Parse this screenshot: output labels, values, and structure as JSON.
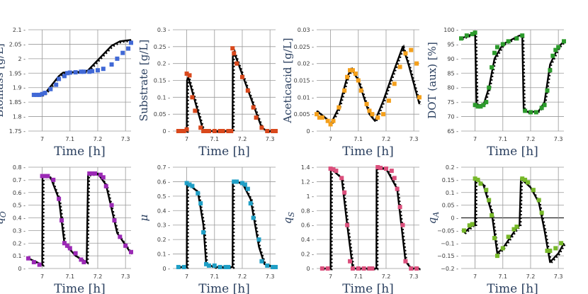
{
  "chart_data": [
    {
      "type": "scatter",
      "title": "",
      "ylabel": "Biomass [g/L]",
      "xlabel": "Time [h]",
      "color": "#4169d6",
      "ylim": [
        1.75,
        2.1
      ],
      "yticks": [
        {
          "v": 1.75,
          "t": "1.75"
        },
        {
          "v": 1.8,
          "t": "1.8"
        },
        {
          "v": 1.85,
          "t": "1.85"
        },
        {
          "v": 1.9,
          "t": "1.9"
        },
        {
          "v": 1.95,
          "t": "1.95"
        },
        {
          "v": 2,
          "t": "2"
        },
        {
          "v": 2.05,
          "t": "2.05"
        },
        {
          "v": 2.1,
          "t": "2.1"
        }
      ],
      "xticks": [
        {
          "v": 7,
          "t": "7"
        },
        {
          "v": 7.1,
          "t": "7.1"
        },
        {
          "v": 7.2,
          "t": "7.2"
        },
        {
          "v": 7.3,
          "t": "7.3"
        }
      ],
      "x": [
        6.97,
        6.98,
        6.99,
        7.0,
        7.01,
        7.03,
        7.05,
        7.06,
        7.08,
        7.09,
        7.1,
        7.12,
        7.14,
        7.15,
        7.17,
        7.18,
        7.2,
        7.22,
        7.25,
        7.27,
        7.29,
        7.31,
        7.32
      ],
      "y": [
        1.875,
        1.875,
        1.875,
        1.878,
        1.882,
        1.895,
        1.91,
        1.93,
        1.94,
        1.95,
        1.952,
        1.953,
        1.955,
        1.955,
        1.955,
        1.957,
        1.96,
        1.965,
        1.98,
        2.0,
        2.02,
        2.035,
        2.055
      ],
      "fit_x": [
        6.97,
        7.0,
        7.01,
        7.06,
        7.075,
        7.15,
        7.165,
        7.25,
        7.28,
        7.32
      ],
      "fit_y": [
        1.875,
        1.875,
        1.88,
        1.94,
        1.952,
        1.955,
        1.96,
        2.045,
        2.06,
        2.065
      ]
    },
    {
      "type": "scatter",
      "title": "",
      "ylabel": "Substrate [g/L]",
      "xlabel": "Time [h]",
      "color": "#d9481c",
      "ylim": [
        0,
        0.3
      ],
      "yticks": [
        {
          "v": 0,
          "t": "0"
        },
        {
          "v": 0.05,
          "t": "0.05"
        },
        {
          "v": 0.1,
          "t": "0.1"
        },
        {
          "v": 0.15,
          "t": "0.15"
        },
        {
          "v": 0.2,
          "t": "0.2"
        },
        {
          "v": 0.25,
          "t": "0.25"
        },
        {
          "v": 0.3,
          "t": "0.3"
        }
      ],
      "xticks": [
        {
          "v": 7,
          "t": "7"
        },
        {
          "v": 7.1,
          "t": "7.1"
        },
        {
          "v": 7.2,
          "t": "7.2"
        },
        {
          "v": 7.3,
          "t": "7.3"
        }
      ],
      "x": [
        6.97,
        6.98,
        6.99,
        7.0,
        7.0,
        7.01,
        7.02,
        7.03,
        7.05,
        7.06,
        7.07,
        7.08,
        7.1,
        7.12,
        7.13,
        7.15,
        7.16,
        7.165,
        7.17,
        7.18,
        7.2,
        7.22,
        7.24,
        7.25,
        7.27,
        7.29,
        7.31,
        7.32
      ],
      "y": [
        0,
        0,
        0,
        0.005,
        0.17,
        0.165,
        0.1,
        0.06,
        0.01,
        0,
        0,
        0,
        0,
        0,
        0,
        0,
        0,
        0.245,
        0.23,
        0.2,
        0.16,
        0.12,
        0.07,
        0.04,
        0.01,
        0,
        0,
        0
      ],
      "fit_x": [
        6.97,
        7.0,
        7.001,
        7.005,
        7.06,
        7.07,
        7.165,
        7.166,
        7.17,
        7.27,
        7.29,
        7.32
      ],
      "fit_y": [
        0,
        0,
        0.15,
        0.16,
        0,
        0,
        0,
        0.22,
        0.235,
        0.01,
        0,
        0
      ]
    },
    {
      "type": "scatter",
      "title": "",
      "ylabel": "Aceticacid [g/L]",
      "xlabel": "Time [h]",
      "color": "#f4a01c",
      "ylim": [
        0,
        0.03
      ],
      "yticks": [
        {
          "v": 0,
          "t": "0"
        },
        {
          "v": 0.005,
          "t": "0.005"
        },
        {
          "v": 0.01,
          "t": "0.01"
        },
        {
          "v": 0.015,
          "t": "0.015"
        },
        {
          "v": 0.02,
          "t": "0.02"
        },
        {
          "v": 0.025,
          "t": "0.025"
        },
        {
          "v": 0.03,
          "t": "0.03"
        }
      ],
      "xticks": [
        {
          "v": 7,
          "t": "7"
        },
        {
          "v": 7.1,
          "t": "7.1"
        },
        {
          "v": 7.2,
          "t": "7.2"
        },
        {
          "v": 7.3,
          "t": "7.3"
        }
      ],
      "x": [
        6.95,
        6.96,
        6.97,
        6.99,
        7.0,
        7.01,
        7.03,
        7.05,
        7.06,
        7.07,
        7.08,
        7.09,
        7.1,
        7.11,
        7.13,
        7.14,
        7.15,
        7.17,
        7.19,
        7.21,
        7.23,
        7.25,
        7.27,
        7.29,
        7.31,
        7.32
      ],
      "y": [
        0.005,
        0.004,
        0.004,
        0.003,
        0.002,
        0.003,
        0.007,
        0.012,
        0.016,
        0.018,
        0.018,
        0.017,
        0.015,
        0.012,
        0.008,
        0.006,
        0.005,
        0.004,
        0.005,
        0.009,
        0.014,
        0.019,
        0.023,
        0.024,
        0.02,
        0.01
      ],
      "fit_x": [
        6.95,
        6.98,
        7.0,
        7.03,
        7.06,
        7.075,
        7.1,
        7.14,
        7.16,
        7.19,
        7.22,
        7.26,
        7.28,
        7.32
      ],
      "fit_y": [
        0.006,
        0.004,
        0.002,
        0.007,
        0.016,
        0.0185,
        0.015,
        0.005,
        0.003,
        0.009,
        0.016,
        0.025,
        0.02,
        0.008
      ]
    },
    {
      "type": "scatter",
      "title": "",
      "ylabel": "DOT (aux) [%]",
      "xlabel": "Time [h]",
      "color": "#2c9b2c",
      "ylim": [
        65,
        100
      ],
      "yticks": [
        {
          "v": 65,
          "t": "65"
        },
        {
          "v": 70,
          "t": "70"
        },
        {
          "v": 75,
          "t": "75"
        },
        {
          "v": 80,
          "t": "80"
        },
        {
          "v": 85,
          "t": "85"
        },
        {
          "v": 90,
          "t": "90"
        },
        {
          "v": 95,
          "t": "95"
        },
        {
          "v": 100,
          "t": "100"
        }
      ],
      "xticks": [
        {
          "v": 7,
          "t": "7"
        },
        {
          "v": 7.1,
          "t": "7.1"
        },
        {
          "v": 7.2,
          "t": "7.2"
        },
        {
          "v": 7.3,
          "t": "7.3"
        }
      ],
      "x": [
        6.95,
        6.97,
        6.99,
        7.0,
        7.0,
        7.01,
        7.02,
        7.03,
        7.04,
        7.05,
        7.06,
        7.07,
        7.08,
        7.1,
        7.12,
        7.15,
        7.17,
        7.18,
        7.2,
        7.22,
        7.24,
        7.25,
        7.26,
        7.27,
        7.28,
        7.29,
        7.3,
        7.32
      ],
      "y": [
        97,
        98,
        98.5,
        99,
        74,
        73.5,
        73.5,
        74,
        75,
        80,
        87,
        92,
        94,
        95,
        96,
        97,
        98,
        72,
        71.5,
        71.5,
        73,
        74,
        79,
        86,
        91,
        93,
        94,
        96
      ],
      "fit_x": [
        6.95,
        6.99,
        7.0,
        7.005,
        7.03,
        7.05,
        7.07,
        7.1,
        7.16,
        7.17,
        7.175,
        7.2,
        7.23,
        7.25,
        7.27,
        7.3,
        7.32
      ],
      "fit_y": [
        97,
        98.5,
        99,
        74,
        74,
        80,
        90,
        95,
        98,
        98,
        72,
        71.5,
        72,
        75,
        88,
        94,
        96
      ]
    },
    {
      "type": "scatter",
      "title": "",
      "ylabel": "q_O",
      "xlabel": "Time [h]",
      "color": "#9b29b5",
      "ylim": [
        0,
        0.8
      ],
      "yticks": [
        {
          "v": 0,
          "t": "0"
        },
        {
          "v": 0.1,
          "t": "0.1"
        },
        {
          "v": 0.2,
          "t": "0.2"
        },
        {
          "v": 0.3,
          "t": "0.3"
        },
        {
          "v": 0.4,
          "t": "0.4"
        },
        {
          "v": 0.5,
          "t": "0.5"
        },
        {
          "v": 0.6,
          "t": "0.6"
        },
        {
          "v": 0.7,
          "t": "0.7"
        },
        {
          "v": 0.8,
          "t": "0.8"
        }
      ],
      "xticks": [
        {
          "v": 7,
          "t": "7"
        },
        {
          "v": 7.1,
          "t": "7.1"
        },
        {
          "v": 7.2,
          "t": "7.2"
        },
        {
          "v": 7.3,
          "t": "7.3"
        }
      ],
      "x": [
        6.95,
        6.97,
        6.99,
        7.0,
        7.01,
        7.02,
        7.04,
        7.06,
        7.07,
        7.08,
        7.09,
        7.1,
        7.12,
        7.14,
        7.15,
        7.17,
        7.18,
        7.19,
        7.21,
        7.22,
        7.23,
        7.25,
        7.26,
        7.28,
        7.3,
        7.32
      ],
      "y": [
        0.08,
        0.05,
        0.03,
        0.73,
        0.73,
        0.73,
        0.7,
        0.55,
        0.38,
        0.2,
        0.18,
        0.16,
        0.12,
        0.07,
        0.05,
        0.75,
        0.75,
        0.75,
        0.74,
        0.72,
        0.65,
        0.5,
        0.38,
        0.25,
        0.18,
        0.13
      ],
      "fit_x": [
        6.95,
        7.0,
        7.001,
        7.03,
        7.06,
        7.08,
        7.12,
        7.16,
        7.165,
        7.2,
        7.23,
        7.27,
        7.32
      ],
      "fit_y": [
        0.08,
        0.03,
        0.73,
        0.72,
        0.55,
        0.2,
        0.1,
        0.05,
        0.74,
        0.75,
        0.66,
        0.28,
        0.12
      ]
    },
    {
      "type": "scatter",
      "title": "",
      "ylabel": "μ",
      "xlabel": "Time [h]",
      "color": "#1f9fc6",
      "ylim": [
        0,
        0.7
      ],
      "yticks": [
        {
          "v": 0,
          "t": "0"
        },
        {
          "v": 0.1,
          "t": "0.1"
        },
        {
          "v": 0.2,
          "t": "0.2"
        },
        {
          "v": 0.3,
          "t": "0.3"
        },
        {
          "v": 0.4,
          "t": "0.4"
        },
        {
          "v": 0.5,
          "t": "0.5"
        },
        {
          "v": 0.6,
          "t": "0.6"
        },
        {
          "v": 0.7,
          "t": "0.7"
        }
      ],
      "xticks": [
        {
          "v": 7,
          "t": "7"
        },
        {
          "v": 7.1,
          "t": "7.1"
        },
        {
          "v": 7.2,
          "t": "7.2"
        },
        {
          "v": 7.3,
          "t": "7.3"
        }
      ],
      "x": [
        6.97,
        6.99,
        7.0,
        7.01,
        7.02,
        7.04,
        7.05,
        7.06,
        7.07,
        7.08,
        7.1,
        7.12,
        7.14,
        7.15,
        7.17,
        7.18,
        7.2,
        7.21,
        7.22,
        7.23,
        7.24,
        7.26,
        7.27,
        7.29,
        7.31,
        7.32
      ],
      "y": [
        0.01,
        0.01,
        0.59,
        0.58,
        0.57,
        0.52,
        0.45,
        0.25,
        0.03,
        0.02,
        0.02,
        0.01,
        0.01,
        0.01,
        0.6,
        0.6,
        0.59,
        0.58,
        0.55,
        0.45,
        0.35,
        0.2,
        0.05,
        0.02,
        0.01,
        0.01
      ],
      "fit_x": [
        6.97,
        7.0,
        7.001,
        7.04,
        7.06,
        7.07,
        7.1,
        7.165,
        7.166,
        7.2,
        7.23,
        7.26,
        7.28,
        7.32
      ],
      "fit_y": [
        0.01,
        0.01,
        0.59,
        0.53,
        0.3,
        0.03,
        0.01,
        0.01,
        0.6,
        0.59,
        0.48,
        0.15,
        0.03,
        0.01
      ]
    },
    {
      "type": "scatter",
      "title": "",
      "ylabel": "q_S",
      "xlabel": "Time [h]",
      "color": "#db4f7c",
      "ylim": [
        0,
        1.4
      ],
      "yticks": [
        {
          "v": 0,
          "t": "0"
        },
        {
          "v": 0.2,
          "t": "0.2"
        },
        {
          "v": 0.4,
          "t": "0.4"
        },
        {
          "v": 0.6,
          "t": "0.6"
        },
        {
          "v": 0.8,
          "t": "0.8"
        },
        {
          "v": 1,
          "t": "1"
        },
        {
          "v": 1.2,
          "t": "1.2"
        },
        {
          "v": 1.4,
          "t": "1.4"
        }
      ],
      "xticks": [
        {
          "v": 7,
          "t": "7"
        },
        {
          "v": 7.1,
          "t": "7.1"
        },
        {
          "v": 7.2,
          "t": "7.2"
        },
        {
          "v": 7.3,
          "t": "7.3"
        }
      ],
      "x": [
        6.97,
        6.99,
        7.0,
        7.01,
        7.02,
        7.04,
        7.05,
        7.06,
        7.07,
        7.08,
        7.1,
        7.12,
        7.14,
        7.15,
        7.17,
        7.18,
        7.2,
        7.22,
        7.23,
        7.24,
        7.25,
        7.26,
        7.27,
        7.29,
        7.31
      ],
      "y": [
        0,
        0,
        1.38,
        1.37,
        1.35,
        1.25,
        1.05,
        0.6,
        0.1,
        0,
        0,
        0,
        0,
        0,
        1.4,
        1.39,
        1.38,
        1.35,
        1.25,
        1.1,
        0.85,
        0.6,
        0.1,
        0,
        0
      ],
      "fit_x": [
        6.97,
        7.0,
        7.001,
        7.04,
        7.06,
        7.08,
        7.165,
        7.166,
        7.2,
        7.24,
        7.27,
        7.29,
        7.32
      ],
      "fit_y": [
        0,
        0,
        1.38,
        1.25,
        0.6,
        0,
        0,
        1.4,
        1.38,
        1.1,
        0.1,
        0,
        0
      ]
    },
    {
      "type": "scatter",
      "title": "",
      "ylabel": "q_A",
      "xlabel": "Time [h]",
      "color": "#77b82a",
      "ylim": [
        -0.2,
        0.2
      ],
      "yticks": [
        {
          "v": -0.2,
          "t": "−0.2"
        },
        {
          "v": -0.15,
          "t": "−0.15"
        },
        {
          "v": -0.1,
          "t": "−0.1"
        },
        {
          "v": -0.05,
          "t": "−0.05"
        },
        {
          "v": 0,
          "t": "0"
        },
        {
          "v": 0.05,
          "t": "0.05"
        },
        {
          "v": 0.1,
          "t": "0.1"
        },
        {
          "v": 0.15,
          "t": "0.15"
        },
        {
          "v": 0.2,
          "t": "0.2"
        }
      ],
      "xticks": [
        {
          "v": 7,
          "t": "7"
        },
        {
          "v": 7.1,
          "t": "7.1"
        },
        {
          "v": 7.2,
          "t": "7.2"
        },
        {
          "v": 7.3,
          "t": "7.3"
        }
      ],
      "x": [
        6.96,
        6.98,
        6.99,
        7.0,
        7.01,
        7.02,
        7.04,
        7.05,
        7.06,
        7.07,
        7.08,
        7.1,
        7.12,
        7.14,
        7.15,
        7.17,
        7.18,
        7.19,
        7.21,
        7.23,
        7.24,
        7.26,
        7.27,
        7.29,
        7.31
      ],
      "y": [
        -0.05,
        -0.03,
        -0.025,
        0.155,
        0.15,
        0.135,
        0.11,
        0.07,
        0.01,
        -0.08,
        -0.15,
        -0.12,
        -0.075,
        -0.045,
        -0.035,
        0.155,
        0.15,
        0.14,
        0.11,
        0.07,
        0.02,
        -0.13,
        -0.13,
        -0.12,
        -0.1
      ],
      "fit_x": [
        6.96,
        6.99,
        7.0,
        7.001,
        7.03,
        7.06,
        7.08,
        7.1,
        7.15,
        7.16,
        7.165,
        7.2,
        7.23,
        7.25,
        7.27,
        7.3,
        7.32
      ],
      "fit_y": [
        -0.06,
        -0.03,
        -0.03,
        0.155,
        0.13,
        0.02,
        -0.14,
        -0.12,
        -0.04,
        -0.03,
        0.155,
        0.12,
        0.06,
        -0.05,
        -0.175,
        -0.14,
        -0.1
      ]
    }
  ]
}
